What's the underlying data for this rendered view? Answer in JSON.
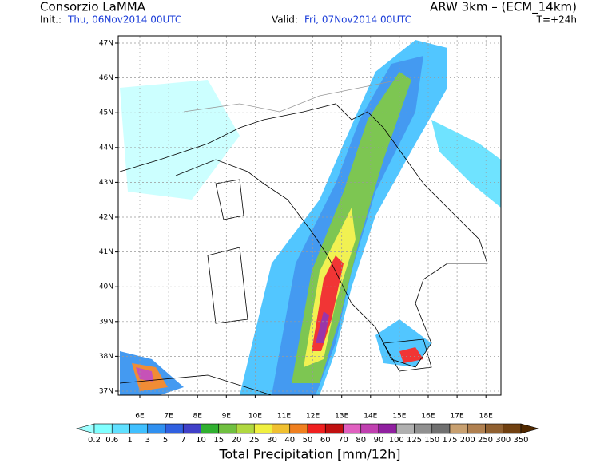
{
  "header": {
    "title": "Consorzio LaMMA",
    "model": "ARW 3km – (ECM_14km)",
    "init_label": "Init.:",
    "init_value": "Thu, 06Nov2014 00UTC",
    "valid_label": "Valid:",
    "valid_value": "Fri, 07Nov2014 00UTC",
    "lead": "T=+24h"
  },
  "map": {
    "lat_labels": [
      "47N",
      "46N",
      "45N",
      "44N",
      "43N",
      "42N",
      "41N",
      "40N",
      "39N",
      "38N",
      "37N"
    ],
    "lon_labels": [
      "6E",
      "7E",
      "8E",
      "9E",
      "10E",
      "11E",
      "12E",
      "13E",
      "14E",
      "15E",
      "16E",
      "17E",
      "18E"
    ]
  },
  "legend": {
    "levels": [
      0.2,
      0.6,
      1,
      3,
      5,
      7,
      10,
      15,
      20,
      25,
      30,
      40,
      50,
      60,
      70,
      80,
      90,
      100,
      125,
      150,
      175,
      200,
      250,
      300,
      350
    ],
    "colors": [
      "#a0ffff",
      "#80ffff",
      "#60e0ff",
      "#40c0ff",
      "#3090f0",
      "#3060e0",
      "#4040c8",
      "#30b030",
      "#70c040",
      "#b0d840",
      "#f0f040",
      "#f0c030",
      "#f08020",
      "#f02020",
      "#c01010",
      "#e060c0",
      "#c040b0",
      "#9020a0",
      "#b0b0b0",
      "#909090",
      "#707070",
      "#c8a070",
      "#b08050",
      "#906030",
      "#704010",
      "#502800"
    ],
    "caption": "Total Precipitation [mm/12h]"
  }
}
